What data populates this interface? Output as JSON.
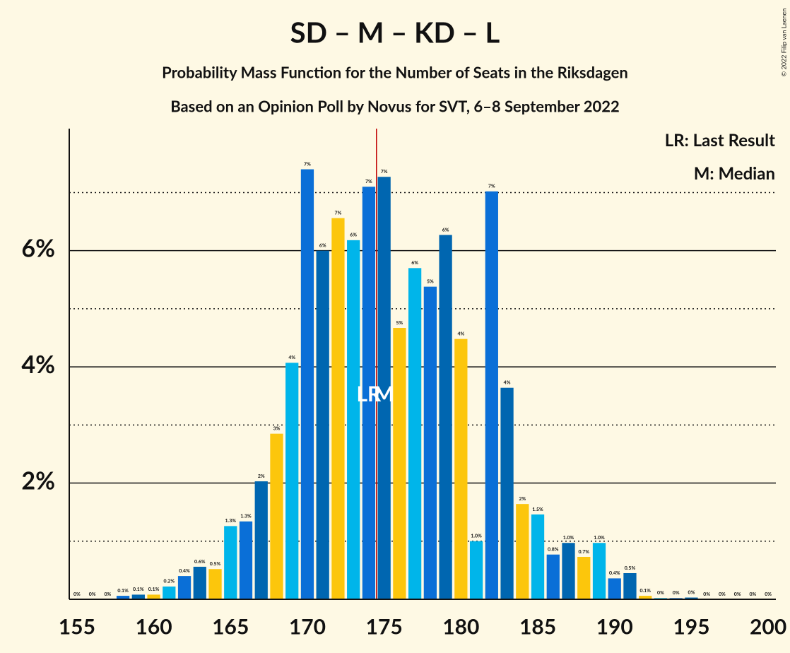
{
  "chart_data": {
    "type": "bar",
    "title": "SD – M – KD – L",
    "subtitle": "Probability Mass Function for the Number of Seats in the Riksdagen",
    "subtitle2": "Based on an Opinion Poll by Novus for SVT, 6–8 September 2022",
    "legend_lr": "LR: Last Result",
    "legend_median": "M: Median",
    "copyright": "© 2022 Filip van Laenen",
    "lr_mark": "LR",
    "median_mark": "M",
    "last_result": 174,
    "median": 175,
    "x": [
      155,
      156,
      157,
      158,
      159,
      160,
      161,
      162,
      163,
      164,
      165,
      166,
      167,
      168,
      169,
      170,
      171,
      172,
      173,
      174,
      175,
      176,
      177,
      178,
      179,
      180,
      181,
      182,
      183,
      184,
      185,
      186,
      187,
      188,
      189,
      190,
      191,
      192,
      193,
      194,
      195,
      196,
      197,
      198,
      199,
      200
    ],
    "values": [
      0,
      0,
      0,
      0.06,
      0.08,
      0.08,
      0.22,
      0.4,
      0.56,
      0.52,
      1.26,
      1.34,
      2.03,
      2.85,
      4.07,
      7.4,
      6.0,
      6.56,
      6.18,
      7.1,
      7.27,
      4.67,
      5.7,
      5.38,
      6.27,
      4.48,
      1.0,
      7.02,
      3.64,
      1.64,
      1.46,
      0.77,
      0.97,
      0.73,
      0.97,
      0.36,
      0.45,
      0.06,
      0.02,
      0.02,
      0.03,
      0,
      0,
      0,
      0,
      0
    ],
    "value_labels": [
      "0%",
      "0%",
      "0%",
      "0.1%",
      "0.1%",
      "0.1%",
      "0.2%",
      "0.4%",
      "0.6%",
      "0.5%",
      "1.3%",
      "1.3%",
      "2%",
      "3%",
      "4%",
      "7%",
      "6%",
      "7%",
      "6%",
      "7%",
      "7%",
      "5%",
      "6%",
      "5%",
      "6%",
      "4%",
      "1.0%",
      "7%",
      "4%",
      "2%",
      "1.5%",
      "0.8%",
      "1.0%",
      "0.7%",
      "1.0%",
      "0.4%",
      "0.5%",
      "0.1%",
      "0%",
      "0%",
      "0%",
      "0%",
      "0%",
      "0%",
      "0%",
      "0%"
    ],
    "colors": [
      "#fcc60c",
      "#00b5ea",
      "#0a6fd7",
      "#0066b0"
    ],
    "median_color": "#c00000",
    "xlim": [
      154.5,
      200.5
    ],
    "xticks": [
      155,
      160,
      165,
      170,
      175,
      180,
      185,
      190,
      195,
      200
    ],
    "ylim": [
      0,
      8.1
    ],
    "yticks": [
      {
        "value": 2,
        "label": "2%"
      },
      {
        "value": 4,
        "label": "4%"
      },
      {
        "value": 6,
        "label": "6%"
      }
    ],
    "minor_yticks": [
      1,
      3,
      5,
      7
    ],
    "grid": true
  }
}
